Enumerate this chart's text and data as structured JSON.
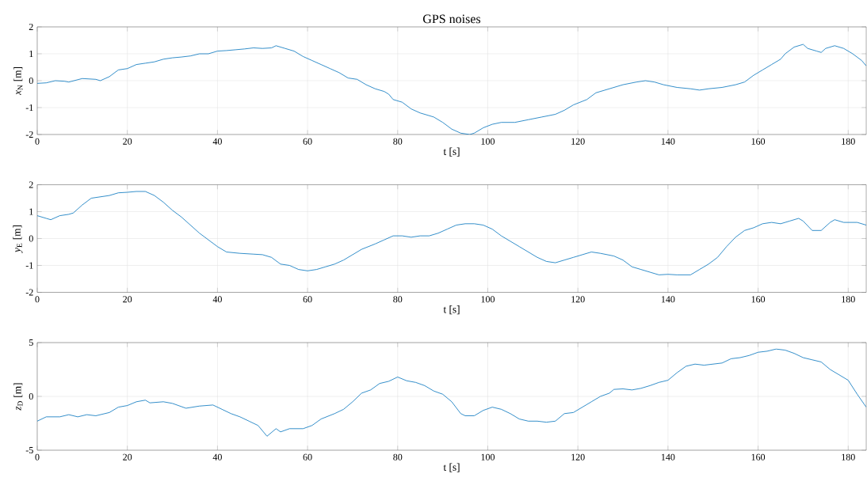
{
  "chart_data": [
    {
      "type": "line",
      "title": "GPS noises",
      "xlabel": "t [s]",
      "ylabel": "*x*$_{N}$ [m]",
      "xlim": [
        0,
        184
      ],
      "xticks": [
        0,
        20,
        40,
        60,
        80,
        100,
        120,
        140,
        160,
        180
      ],
      "ylim": [
        -2,
        2
      ],
      "yticks": [
        -2,
        -1,
        0,
        1,
        2
      ],
      "grid": true,
      "x": [
        0,
        2,
        4,
        6,
        7,
        10,
        13,
        14,
        16,
        18,
        20,
        22,
        24,
        26,
        28,
        30,
        32,
        34,
        36,
        38,
        40,
        42,
        44,
        46,
        48,
        50,
        52,
        53,
        55,
        57,
        59,
        61,
        63,
        65,
        67,
        69,
        71,
        73,
        75,
        77,
        78,
        79,
        81,
        83,
        85,
        88,
        90,
        92,
        94,
        96,
        97,
        99,
        101,
        103,
        106,
        109,
        112,
        115,
        117,
        119,
        122,
        124,
        127,
        130,
        133,
        135,
        137,
        139,
        142,
        145,
        147,
        149,
        152,
        155,
        157,
        159,
        161,
        163,
        165,
        166,
        168,
        170,
        171,
        173,
        174,
        175,
        177,
        179,
        181,
        183,
        184
      ],
      "series": [
        {
          "color": "#0072bd",
          "values": [
            -0.1,
            -0.08,
            0.0,
            -0.02,
            -0.05,
            0.08,
            0.05,
            0.0,
            0.15,
            0.4,
            0.45,
            0.6,
            0.65,
            0.7,
            0.8,
            0.85,
            0.88,
            0.92,
            1.0,
            1.0,
            1.1,
            1.12,
            1.15,
            1.18,
            1.22,
            1.2,
            1.22,
            1.3,
            1.2,
            1.1,
            0.9,
            0.75,
            0.6,
            0.45,
            0.3,
            0.1,
            0.05,
            -0.15,
            -0.3,
            -0.4,
            -0.5,
            -0.7,
            -0.8,
            -1.05,
            -1.2,
            -1.35,
            -1.55,
            -1.8,
            -1.95,
            -2.0,
            -1.95,
            -1.75,
            -1.62,
            -1.55,
            -1.55,
            -1.45,
            -1.35,
            -1.25,
            -1.1,
            -0.9,
            -0.7,
            -0.45,
            -0.3,
            -0.15,
            -0.05,
            0.0,
            -0.05,
            -0.15,
            -0.25,
            -0.3,
            -0.35,
            -0.3,
            -0.25,
            -0.15,
            -0.05,
            0.2,
            0.4,
            0.6,
            0.8,
            1.0,
            1.25,
            1.35,
            1.2,
            1.1,
            1.05,
            1.2,
            1.3,
            1.2,
            1.0,
            0.75,
            0.55
          ]
        }
      ]
    },
    {
      "type": "line",
      "xlabel": "t [s]",
      "ylabel": "*y*$_{E}$ [m]",
      "xlim": [
        0,
        184
      ],
      "xticks": [
        0,
        20,
        40,
        60,
        80,
        100,
        120,
        140,
        160,
        180
      ],
      "ylim": [
        -2,
        2
      ],
      "yticks": [
        -2,
        -1,
        0,
        1,
        2
      ],
      "grid": true,
      "x": [
        0,
        2,
        3,
        5,
        7,
        8,
        10,
        12,
        14,
        16,
        18,
        20,
        22,
        24,
        26,
        28,
        30,
        32,
        34,
        36,
        38,
        40,
        42,
        45,
        48,
        50,
        52,
        54,
        56,
        58,
        60,
        62,
        64,
        66,
        68,
        70,
        72,
        75,
        77,
        79,
        81,
        83,
        85,
        87,
        89,
        91,
        93,
        95,
        97,
        99,
        101,
        103,
        105,
        107,
        109,
        111,
        113,
        115,
        117,
        119,
        121,
        123,
        125,
        128,
        130,
        132,
        134,
        136,
        138,
        140,
        142,
        145,
        147,
        149,
        151,
        153,
        155,
        157,
        159,
        161,
        163,
        165,
        167,
        169,
        170,
        172,
        174,
        176,
        177,
        179,
        182,
        184
      ],
      "series": [
        {
          "color": "#0072bd",
          "values": [
            0.85,
            0.75,
            0.7,
            0.85,
            0.9,
            0.95,
            1.25,
            1.5,
            1.55,
            1.6,
            1.7,
            1.72,
            1.75,
            1.75,
            1.6,
            1.35,
            1.05,
            0.8,
            0.5,
            0.2,
            -0.05,
            -0.3,
            -0.5,
            -0.55,
            -0.58,
            -0.6,
            -0.7,
            -0.95,
            -1.0,
            -1.15,
            -1.2,
            -1.15,
            -1.05,
            -0.95,
            -0.8,
            -0.6,
            -0.4,
            -0.2,
            -0.05,
            0.1,
            0.1,
            0.05,
            0.1,
            0.1,
            0.2,
            0.35,
            0.5,
            0.55,
            0.55,
            0.5,
            0.35,
            0.1,
            -0.1,
            -0.3,
            -0.5,
            -0.7,
            -0.85,
            -0.9,
            -0.8,
            -0.7,
            -0.6,
            -0.5,
            -0.55,
            -0.65,
            -0.8,
            -1.05,
            -1.15,
            -1.25,
            -1.35,
            -1.33,
            -1.35,
            -1.35,
            -1.15,
            -0.95,
            -0.7,
            -0.3,
            0.05,
            0.3,
            0.4,
            0.55,
            0.6,
            0.55,
            0.65,
            0.75,
            0.65,
            0.3,
            0.3,
            0.6,
            0.7,
            0.6,
            0.6,
            0.5
          ]
        }
      ]
    },
    {
      "type": "line",
      "xlabel": "t [s]",
      "ylabel": "*z*$_{D}$ [m]",
      "xlim": [
        0,
        184
      ],
      "xticks": [
        0,
        20,
        40,
        60,
        80,
        100,
        120,
        140,
        160,
        180
      ],
      "ylim": [
        -5,
        5
      ],
      "yticks": [
        -5,
        0,
        5
      ],
      "grid": true,
      "x": [
        0,
        2,
        5,
        7,
        9,
        11,
        13,
        16,
        18,
        20,
        22,
        24,
        25,
        28,
        30,
        33,
        36,
        39,
        41,
        43,
        45,
        47,
        49,
        51,
        53,
        54,
        56,
        59,
        61,
        63,
        66,
        68,
        70,
        72,
        74,
        76,
        78,
        80,
        82,
        84,
        86,
        88,
        90,
        92,
        94,
        95,
        97,
        99,
        101,
        103,
        105,
        107,
        109,
        111,
        113,
        115,
        117,
        119,
        121,
        123,
        125,
        127,
        128,
        130,
        132,
        134,
        136,
        138,
        140,
        142,
        144,
        146,
        148,
        150,
        152,
        154,
        156,
        158,
        160,
        162,
        164,
        166,
        168,
        170,
        172,
        174,
        176,
        178,
        180,
        182,
        184
      ],
      "series": [
        {
          "color": "#0072bd",
          "values": [
            -2.3,
            -1.9,
            -1.9,
            -1.7,
            -1.9,
            -1.7,
            -1.8,
            -1.5,
            -1.0,
            -0.85,
            -0.5,
            -0.35,
            -0.6,
            -0.5,
            -0.65,
            -1.1,
            -0.9,
            -0.8,
            -1.2,
            -1.6,
            -1.9,
            -2.3,
            -2.7,
            -3.7,
            -3.0,
            -3.3,
            -3.0,
            -3.0,
            -2.7,
            -2.1,
            -1.6,
            -1.2,
            -0.5,
            0.3,
            0.6,
            1.2,
            1.4,
            1.8,
            1.45,
            1.3,
            1.0,
            0.5,
            0.2,
            -0.5,
            -1.6,
            -1.8,
            -1.8,
            -1.3,
            -1.0,
            -1.2,
            -1.6,
            -2.1,
            -2.3,
            -2.3,
            -2.4,
            -2.3,
            -1.6,
            -1.5,
            -1.0,
            -0.5,
            0.0,
            0.3,
            0.65,
            0.7,
            0.6,
            0.75,
            1.0,
            1.3,
            1.5,
            2.2,
            2.8,
            3.0,
            2.9,
            3.0,
            3.1,
            3.5,
            3.6,
            3.8,
            4.1,
            4.2,
            4.4,
            4.3,
            4.0,
            3.6,
            3.4,
            3.2,
            2.5,
            2.0,
            1.5,
            0.2,
            -1.0
          ]
        }
      ]
    }
  ]
}
